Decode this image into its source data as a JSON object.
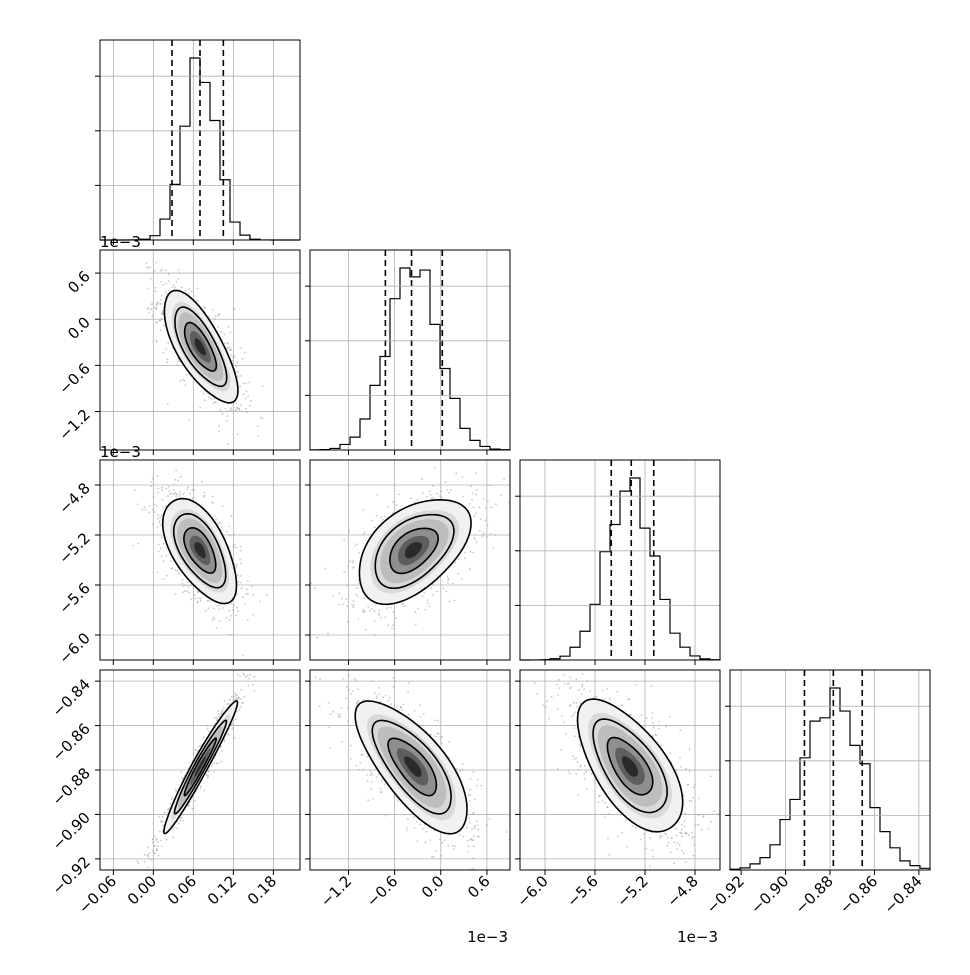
{
  "chart_data": {
    "type": "corner",
    "grid": true,
    "parameters": [
      {
        "range": [
          -0.08,
          0.22
        ],
        "ticks": [
          -0.06,
          0.0,
          0.06,
          0.12,
          0.18
        ],
        "tick_labels": [
          "−0.06",
          "0.00",
          "0.06",
          "0.12",
          "0.18"
        ],
        "offset_label": "",
        "mean": 0.07,
        "sd": 0.025
      },
      {
        "range": [
          -1.7,
          0.9
        ],
        "ticks": [
          -1.2,
          -0.6,
          0.0,
          0.6
        ],
        "tick_labels": [
          "−1.2",
          "−0.6",
          "0.0",
          "0.6"
        ],
        "offset_label": "1e−3",
        "mean": -0.36,
        "sd": 0.33
      },
      {
        "range": [
          -6.2,
          -4.6
        ],
        "ticks": [
          -6.0,
          -5.6,
          -5.2,
          -4.8
        ],
        "tick_labels": [
          "−6.0",
          "−5.6",
          "−5.2",
          "−4.8"
        ],
        "offset_label": "1e−3",
        "mean": -5.32,
        "sd": 0.19
      },
      {
        "range": [
          -0.925,
          -0.835
        ],
        "ticks": [
          -0.92,
          -0.9,
          -0.88,
          -0.86,
          -0.84
        ],
        "tick_labels": [
          "−0.92",
          "−0.90",
          "−0.88",
          "−0.86",
          "−0.84"
        ],
        "offset_label": "",
        "mean": -0.8785,
        "sd": 0.0135
      }
    ],
    "row_offset_labels": [
      "1e−3",
      "1e−3"
    ],
    "quantiles": [
      [
        0.028,
        0.07,
        0.105
      ],
      [
        -0.72,
        -0.38,
        0.02
      ],
      [
        -5.47,
        -5.31,
        -5.13
      ],
      [
        -0.8915,
        -0.8785,
        -0.8655
      ]
    ],
    "correlations": [
      [
        1,
        0
      ],
      [
        2,
        0
      ],
      [
        2,
        1
      ],
      [
        3,
        0
      ],
      [
        3,
        1
      ],
      [
        3,
        2
      ]
    ],
    "correlation_values": [
      -0.72,
      -0.58,
      0.48,
      0.97,
      -0.72,
      -0.62
    ],
    "histogram_bins": 20,
    "contour_levels": [
      0.39,
      0.86,
      0.99
    ]
  }
}
